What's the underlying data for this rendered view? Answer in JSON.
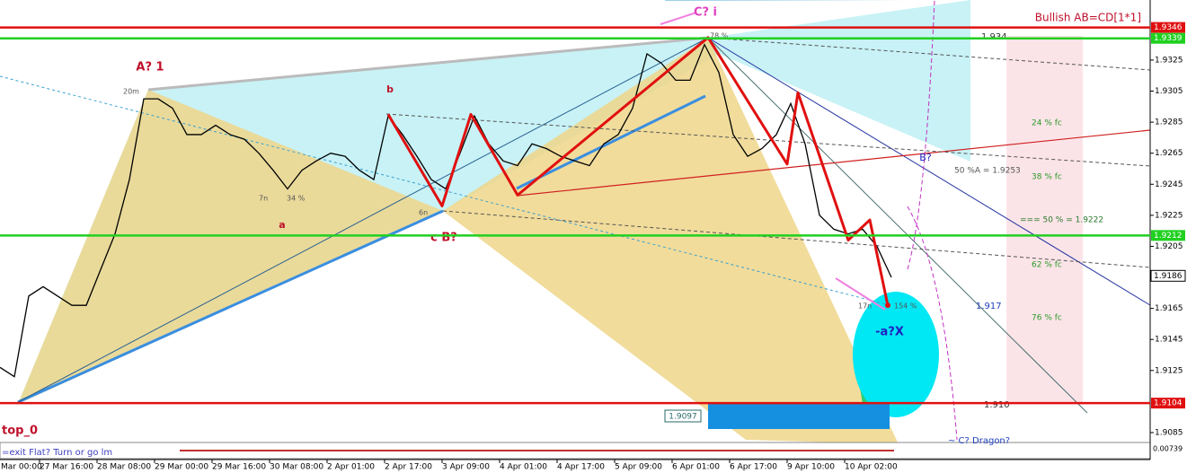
{
  "chart_data": {
    "type": "line",
    "title": "Bullish AB=CD[1*1]",
    "x": [
      -11,
      -7,
      -3,
      1,
      5,
      9,
      13,
      17,
      21,
      25,
      29,
      33,
      37,
      41,
      45,
      49,
      53,
      57,
      61,
      65,
      69,
      73,
      77,
      81,
      85,
      89,
      93,
      97,
      101,
      105,
      109,
      113,
      117,
      121,
      125,
      129,
      133,
      137,
      141,
      145,
      149,
      153,
      157,
      161,
      165,
      169,
      173,
      177,
      181,
      185,
      189,
      193,
      197,
      201,
      205,
      209,
      213,
      217,
      221,
      225,
      229,
      233,
      237
    ],
    "series": [
      {
        "name": "price",
        "color": "#000000",
        "values": [
          1.9127,
          1.9121,
          1.9173,
          1.9179,
          1.9173,
          1.9167,
          1.9167,
          1.919,
          1.9213,
          1.9248,
          1.93,
          1.93,
          1.9294,
          1.9277,
          1.9277,
          1.9283,
          1.9277,
          1.9274,
          1.9265,
          1.9254,
          1.9242,
          1.9254,
          1.926,
          1.9265,
          1.9263,
          1.9254,
          1.9248,
          1.9289,
          1.9277,
          1.9263,
          1.9248,
          1.9242,
          1.9265,
          1.9289,
          1.9271,
          1.926,
          1.9257,
          1.9271,
          1.9268,
          1.9263,
          1.926,
          1.9257,
          1.9271,
          1.9277,
          1.9294,
          1.9329,
          1.9323,
          1.9312,
          1.9312,
          1.9335,
          1.9317,
          1.9277,
          1.9263,
          1.9268,
          1.9277,
          1.9297,
          1.9271,
          1.9225,
          1.9216,
          1.9213,
          1.9216,
          1.9205,
          1.9185
        ]
      }
    ],
    "pattern": {
      "color": "#e01010",
      "x": [
        97,
        112,
        120,
        133,
        186,
        208,
        211,
        225,
        231,
        236
      ],
      "values": [
        1.929,
        1.9231,
        1.929,
        1.9238,
        1.93395,
        1.9258,
        1.9304,
        1.9209,
        1.9222,
        1.9167
      ]
    },
    "levels": [
      {
        "value": 1.9346,
        "color": "#e01010"
      },
      {
        "value": 1.9339,
        "color": "#20d020"
      },
      {
        "value": 1.9212,
        "color": "#20d020"
      },
      {
        "value": 1.9104,
        "color": "#e01010"
      },
      {
        "value": 1.9186,
        "color": "#000000"
      }
    ],
    "xlim": [
      -11,
      309
    ],
    "ylim": [
      1.90792,
      1.93637
    ],
    "yticks": [
      1.9325,
      1.9305,
      1.9285,
      1.9265,
      1.9245,
      1.9225,
      1.9205,
      1.9165,
      1.9145,
      1.9125,
      1.9085
    ],
    "xticks": [
      {
        "value": -16,
        "label": "Mar 00:00"
      },
      {
        "value": 0,
        "label": "27 Mar 16:00"
      },
      {
        "value": 16,
        "label": "28 Mar 08:00"
      },
      {
        "value": 32,
        "label": "29 Mar 00:00"
      },
      {
        "value": 48,
        "label": "29 Mar 16:00"
      },
      {
        "value": 64,
        "label": "30 Mar 08:00"
      },
      {
        "value": 80,
        "label": "2 Apr 01:00"
      },
      {
        "value": 96,
        "label": "2 Apr 17:00"
      },
      {
        "value": 112,
        "label": "3 Apr 09:00"
      },
      {
        "value": 128,
        "label": "4 Apr 01:00"
      },
      {
        "value": 144,
        "label": "4 Apr 17:00"
      },
      {
        "value": 160,
        "label": "5 Apr 09:00"
      },
      {
        "value": 176,
        "label": "6 Apr 01:00"
      },
      {
        "value": 192,
        "label": "6 Apr 17:00"
      },
      {
        "value": 208,
        "label": "9 Apr 10:00"
      },
      {
        "value": 224,
        "label": "10 Apr 02:00"
      }
    ],
    "annotations": {
      "c_i": "C? i",
      "a1": "A? 1",
      "b": "b",
      "a": "a",
      "cb": "c B?",
      "ax": "-a?X",
      "bq": "B?",
      "l1934": "1.934",
      "half_a": "50 %A = 1.9253",
      "fc24": "24 % fc",
      "fc38": "38 % fc",
      "half": "=== 50 % = 1.9222",
      "fc62": "62 % fc",
      "l1917": "1.917",
      "fc76": "76 % fc",
      "l1910": "1.910",
      "box": "1.9097",
      "top0": "top_0",
      "dragon": "~ C? Dragon?",
      "exit": "=exit Flat?  Turn or go lm",
      "p154": "154 %",
      "n17": "17n",
      "n7": "7n",
      "p34": "34 %",
      "m20": "20m",
      "n6": "6n",
      "p78": "78 %",
      "corner": "0.00739"
    }
  }
}
